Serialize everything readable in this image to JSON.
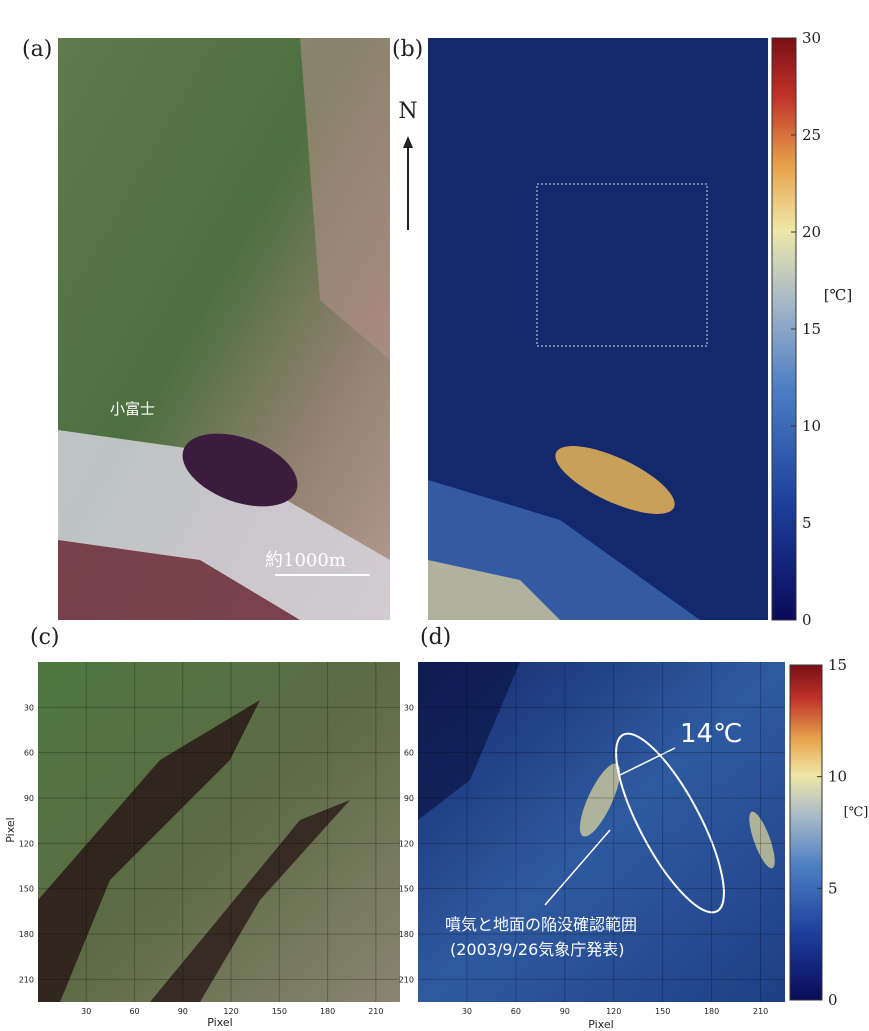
{
  "panels": {
    "a": {
      "label": "(a)",
      "place": "小富士",
      "scale": "約1000m",
      "north": "N"
    },
    "b": {
      "label": "(b)",
      "colorbar": {
        "range": [
          0,
          30
        ],
        "ticks": [
          0,
          5,
          10,
          15,
          20,
          25,
          30
        ],
        "unit": "[℃]"
      }
    },
    "c": {
      "label": "(c)",
      "x_label": "Pixel",
      "y_label": "Pixel",
      "range": [
        0,
        225
      ],
      "xticks": [
        30,
        60,
        90,
        120,
        150,
        180,
        210
      ],
      "yticks": [
        30,
        60,
        90,
        120,
        150,
        180,
        210
      ]
    },
    "d": {
      "label": "(d)",
      "x_label": "Pixel",
      "range": [
        0,
        225
      ],
      "xticks": [
        30,
        60,
        90,
        120,
        150,
        180,
        210
      ],
      "yticks": [
        30,
        60,
        90,
        120,
        150,
        180,
        210
      ],
      "colorbar": {
        "range": [
          0,
          15
        ],
        "ticks": [
          0,
          5,
          10,
          15
        ],
        "unit": "[℃]"
      },
      "peak": "14℃",
      "note_line1": "噴気と地面の陥没確認範囲",
      "note_line2": "(2003/9/26気象庁発表)"
    }
  }
}
